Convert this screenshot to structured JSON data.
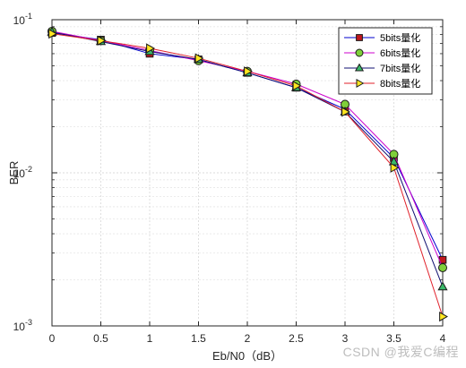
{
  "chart_data": {
    "type": "line",
    "xlabel": "Eb/N0（dB）",
    "ylabel": "BER",
    "xlim": [
      0,
      4
    ],
    "ylim": [
      0.001,
      0.1
    ],
    "yscale": "log",
    "grid": true,
    "legend_placement": "top-right",
    "x": [
      0,
      0.5,
      1,
      1.5,
      2,
      2.5,
      3,
      3.5,
      4
    ],
    "x_ticks": [
      "0",
      "0.5",
      "1",
      "1.5",
      "2",
      "2.5",
      "3",
      "3.5",
      "4"
    ],
    "y_ticks": [
      {
        "value": 0.1,
        "base": "10",
        "exp": "-1"
      },
      {
        "value": 0.01,
        "base": "10",
        "exp": "-2"
      },
      {
        "value": 0.001,
        "base": "10",
        "exp": "-3"
      }
    ],
    "series": [
      {
        "name": "5bits量化",
        "color": "#0000cd",
        "marker": "square",
        "marker_fill": "#c0181e",
        "values": [
          0.082,
          0.074,
          0.06,
          0.055,
          0.045,
          0.036,
          0.026,
          0.0125,
          0.0027
        ]
      },
      {
        "name": "6bits量化",
        "color": "#cc00cc",
        "marker": "circle",
        "marker_fill": "#7fcf3a",
        "values": [
          0.084,
          0.073,
          0.063,
          0.054,
          0.046,
          0.038,
          0.028,
          0.0132,
          0.0024
        ]
      },
      {
        "name": "7bits量化",
        "color": "#101070",
        "marker": "triangle",
        "marker_fill": "#3ab96a",
        "values": [
          0.083,
          0.072,
          0.062,
          0.055,
          0.045,
          0.036,
          0.025,
          0.0118,
          0.0018
        ]
      },
      {
        "name": "8bits量化",
        "color": "#e0202a",
        "marker": "triangle-right",
        "marker_fill": "#ffe620",
        "values": [
          0.081,
          0.073,
          0.065,
          0.056,
          0.046,
          0.037,
          0.025,
          0.0108,
          0.00115
        ]
      }
    ]
  },
  "watermark": "CSDN @我爱C编程"
}
